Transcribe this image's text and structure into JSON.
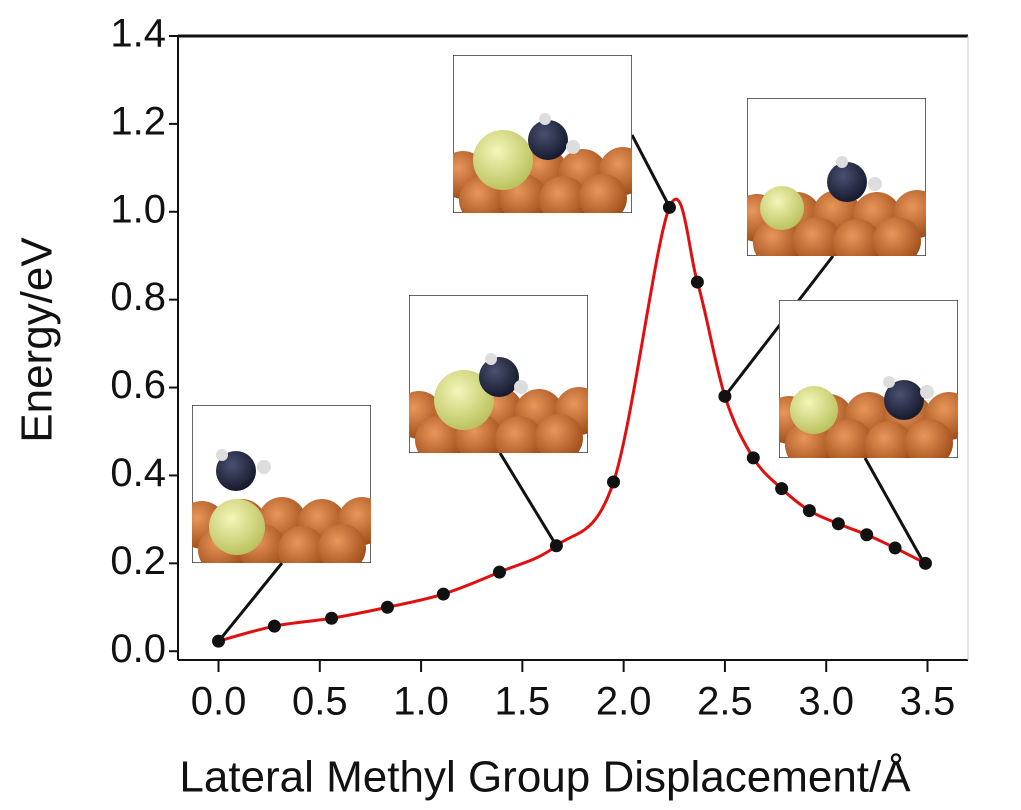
{
  "chart_data": {
    "type": "line",
    "x_label": "Lateral Methyl Group Displacement/Å",
    "y_label": "Energy/eV",
    "x": [
      0.0,
      0.276,
      0.558,
      0.834,
      1.11,
      1.387,
      1.668,
      1.95,
      2.226,
      2.364,
      2.5,
      2.64,
      2.78,
      2.917,
      3.06,
      3.2,
      3.34,
      3.49
    ],
    "series": [
      {
        "color": "#e01010",
        "marker_color": "#111111",
        "values": [
          0.023,
          0.057,
          0.075,
          0.1,
          0.13,
          0.18,
          0.24,
          0.385,
          1.01,
          0.84,
          0.58,
          0.44,
          0.37,
          0.32,
          0.29,
          0.265,
          0.235,
          0.2
        ]
      }
    ],
    "xlim": [
      -0.2,
      3.7
    ],
    "ylim": [
      -0.02,
      1.4
    ],
    "xticks": [
      {
        "value": 0,
        "label": "0.0"
      },
      0.5,
      {
        "value": 1,
        "label": "1.0"
      },
      1.5,
      {
        "value": 2,
        "label": "2.0"
      },
      2.5,
      {
        "value": 3,
        "label": "3.0"
      },
      3.5
    ],
    "yticks": [
      {
        "value": 0,
        "label": "0.0"
      },
      0.2,
      0.4,
      0.6,
      0.8,
      {
        "value": 1,
        "label": "1.0"
      },
      1.2,
      1.4
    ]
  }
}
